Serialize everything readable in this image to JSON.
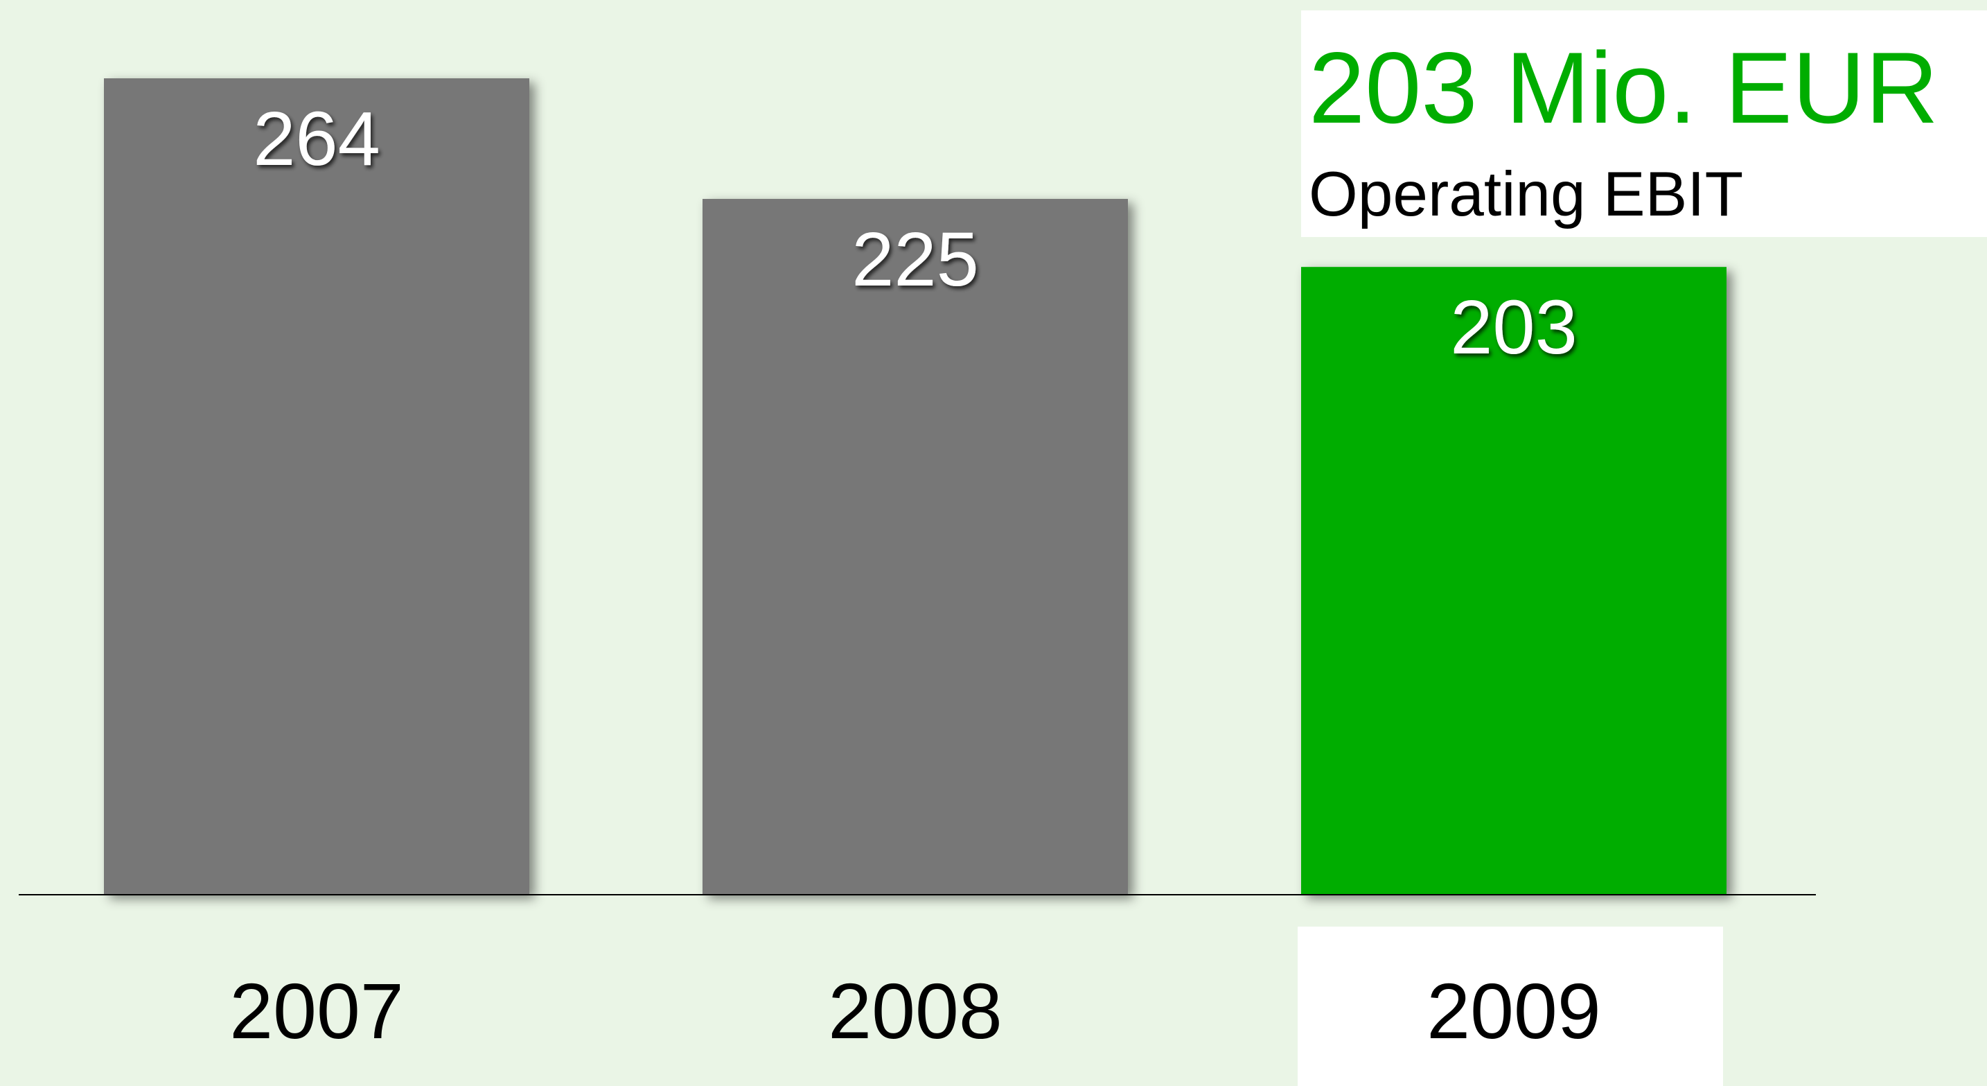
{
  "chart_data": {
    "type": "bar",
    "title": "203 Mio. EUR",
    "subtitle": "Operating EBIT",
    "categories": [
      "2007",
      "2008",
      "2009"
    ],
    "values": [
      264,
      225,
      203
    ],
    "colors": [
      "#777777",
      "#777777",
      "#00ad00"
    ],
    "title_color": "#00ad00"
  }
}
